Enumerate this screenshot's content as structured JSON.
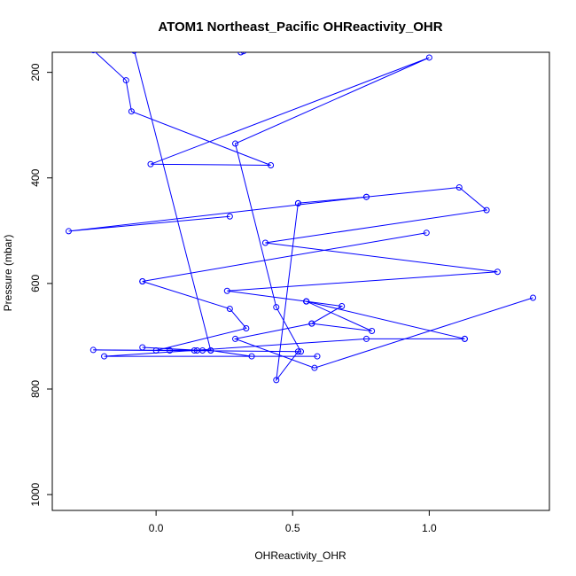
{
  "chart_data": {
    "type": "line",
    "title": "ATOM1 Northeast_Pacific OHReactivity_OHR",
    "xlabel": "OHReactivity_OHR",
    "ylabel": "Pressure (mbar)",
    "xlim": [
      -0.38,
      1.44
    ],
    "ylim": [
      1030,
      162
    ],
    "y_axis_inverted": true,
    "x_ticks": [
      0.0,
      0.5,
      1.0
    ],
    "x_tick_labels": [
      "0.0",
      "0.5",
      "1.0"
    ],
    "y_ticks": [
      200,
      400,
      600,
      800,
      1000
    ],
    "y_tick_labels": [
      "200",
      "400",
      "600",
      "800",
      "1000"
    ],
    "grid": false,
    "legend": "none",
    "line_color": "#0000ff",
    "marker": "open-circle",
    "series": [
      {
        "points": [
          [
            -0.23,
            158
          ],
          [
            -0.11,
            215
          ],
          [
            -0.09,
            274
          ],
          [
            0.42,
            376
          ],
          [
            -0.02,
            374
          ],
          [
            1.0,
            172
          ],
          [
            0.29,
            335
          ],
          [
            0.44,
            645
          ],
          [
            0.53,
            729
          ],
          [
            -0.23,
            726
          ],
          [
            0.15,
            727
          ],
          [
            -0.05,
            721
          ],
          [
            0.17,
            727
          ],
          [
            0.2,
            727
          ],
          [
            -0.08,
            159
          ]
        ]
      },
      {
        "points": [
          [
            0.31,
            162
          ],
          [
            0.32,
            160
          ]
        ]
      },
      {
        "points": [
          [
            0.27,
            473
          ],
          [
            -0.32,
            501
          ],
          [
            0.77,
            436
          ],
          [
            1.11,
            418
          ],
          [
            1.21,
            461
          ],
          [
            0.4,
            523
          ],
          [
            1.25,
            578
          ],
          [
            0.26,
            614
          ],
          [
            0.55,
            634
          ],
          [
            1.13,
            705
          ]
        ]
      },
      {
        "points": [
          [
            -0.05,
            596
          ],
          [
            0.99,
            504
          ]
        ]
      },
      {
        "points": [
          [
            -0.05,
            596
          ],
          [
            0.27,
            648
          ],
          [
            0.33,
            685
          ],
          [
            0.0,
            727
          ],
          [
            0.05,
            727
          ],
          [
            0.14,
            727
          ],
          [
            0.2,
            727
          ],
          [
            0.35,
            738
          ],
          [
            0.59,
            738
          ],
          [
            -0.19,
            738
          ],
          [
            0.77,
            705
          ],
          [
            1.13,
            705
          ]
        ]
      },
      {
        "points": [
          [
            0.55,
            634
          ],
          [
            0.68,
            643
          ],
          [
            0.57,
            676
          ],
          [
            0.29,
            705
          ],
          [
            0.58,
            760
          ],
          [
            1.38,
            627
          ]
        ]
      },
      {
        "points": [
          [
            0.55,
            634
          ],
          [
            0.79,
            690
          ],
          [
            0.57,
            676
          ]
        ]
      },
      {
        "points": [
          [
            0.52,
            448
          ],
          [
            0.77,
            436
          ]
        ]
      },
      {
        "points": [
          [
            0.52,
            448
          ],
          [
            0.44,
            783
          ],
          [
            0.52,
            729
          ]
        ]
      }
    ]
  }
}
